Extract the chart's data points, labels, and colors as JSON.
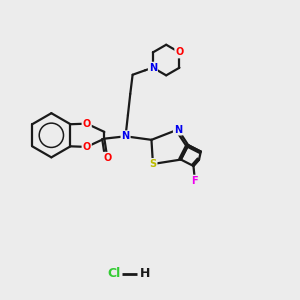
{
  "background_color": "#ececec",
  "bond_color": "#1a1a1a",
  "atom_colors": {
    "O": "#ff0000",
    "N": "#0000ee",
    "S": "#bbbb00",
    "F": "#ee00ee",
    "C": "#1a1a1a",
    "Cl": "#33cc33",
    "H": "#1a1a1a"
  },
  "bond_width": 1.6,
  "figsize": [
    3.0,
    3.0
  ],
  "dpi": 100,
  "hcl_color": "#33cc33"
}
